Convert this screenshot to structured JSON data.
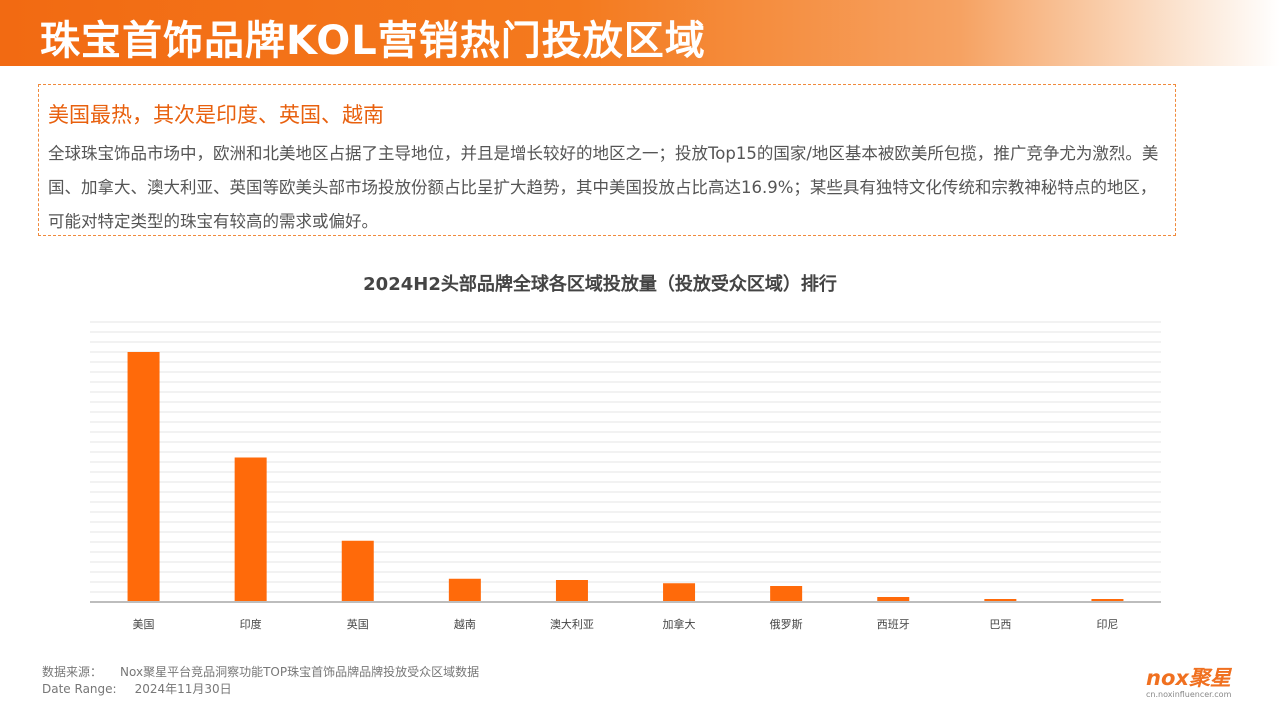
{
  "header": {
    "title": "珠宝首饰品牌KOL营销热门投放区域"
  },
  "summary": {
    "headline": "美国最热，其次是印度、英国、越南",
    "body": "全球珠宝饰品市场中，欧洲和北美地区占据了主导地位，并且是增长较好的地区之一；投放Top15的国家/地区基本被欧美所包揽，推广竞争尤为激烈。美国、加拿大、澳大利亚、英国等欧美头部市场投放份额占比呈扩大趋势，其中美国投放占比高达16.9%；某些具有独特文化传统和宗教神秘特点的地区，可能对特定类型的珠宝有较高的需求或偏好。"
  },
  "chart_data": {
    "type": "bar",
    "title": "2024H2头部品牌全球各区域投放量（投放受众区域）排行",
    "categories": [
      "美国",
      "印度",
      "英国",
      "越南",
      "澳大利亚",
      "加拿大",
      "俄罗斯",
      "西班牙",
      "巴西",
      "印尼"
    ],
    "values": [
      100,
      57.8,
      24.5,
      9.3,
      8.8,
      7.5,
      6.4,
      2.0,
      1.2,
      1.2
    ],
    "ylim": [
      0,
      112
    ],
    "bar_color": "#ff6a0a",
    "grid": true,
    "xlabel": "",
    "ylabel": ""
  },
  "footer": {
    "source_label": "数据来源：",
    "source_text": "Nox聚星平台竞品洞察功能TOP珠宝首饰品牌品牌投放受众区域数据",
    "date_label": "Date Range:",
    "date_text": "2024年11月30日"
  },
  "logo": {
    "brand": "nox聚星",
    "url": "cn.noxinfluencer.com"
  },
  "colors": {
    "accent": "#f26a12",
    "headline": "#e8600e"
  }
}
